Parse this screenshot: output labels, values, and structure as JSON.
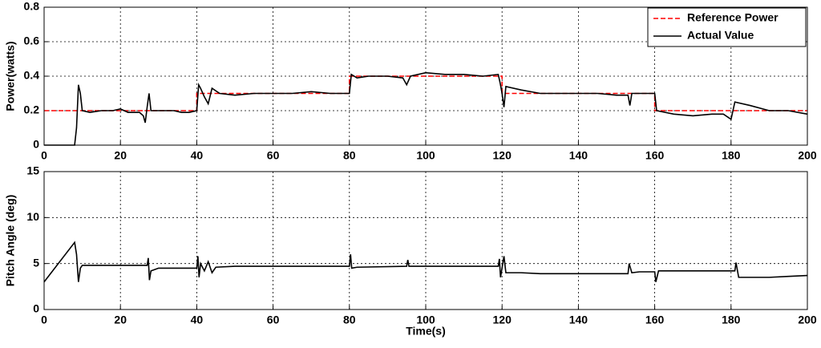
{
  "chart_data": [
    {
      "type": "line",
      "ylabel": "Power(watts)",
      "xlim": [
        0,
        200
      ],
      "ylim": [
        0,
        0.8
      ],
      "xticks": [
        0,
        20,
        40,
        60,
        80,
        100,
        120,
        140,
        160,
        180,
        200
      ],
      "yticks": [
        0,
        0.2,
        0.4,
        0.6,
        0.8
      ],
      "grid": true,
      "legend": "upper right",
      "series": [
        {
          "name": "Reference Power",
          "color": "#ff0000",
          "line_style": "dashed",
          "x": [
            0,
            40,
            40,
            80,
            80,
            120,
            120,
            160,
            160,
            200
          ],
          "values": [
            0.2,
            0.2,
            0.3,
            0.3,
            0.4,
            0.4,
            0.3,
            0.3,
            0.2,
            0.2
          ]
        },
        {
          "name": "Actual Value",
          "color": "#000000",
          "line_style": "solid",
          "x": [
            0,
            8,
            8.5,
            9,
            9.5,
            10,
            12,
            15,
            18,
            20,
            22,
            25,
            26,
            26.5,
            27,
            27.5,
            28,
            30,
            34,
            36,
            38,
            40,
            40.5,
            41,
            42,
            43,
            44,
            46,
            50,
            55,
            60,
            65,
            70,
            75,
            80,
            80.5,
            82,
            85,
            90,
            94,
            95,
            96,
            100,
            105,
            110,
            115,
            119,
            119.5,
            120,
            120.5,
            121,
            125,
            130,
            140,
            145,
            150,
            153,
            153.5,
            154,
            158,
            160,
            160.5,
            165,
            170,
            175,
            178,
            180,
            180.5,
            181,
            185,
            190,
            195,
            200
          ],
          "values": [
            0,
            0,
            0.1,
            0.35,
            0.3,
            0.2,
            0.19,
            0.2,
            0.2,
            0.21,
            0.19,
            0.19,
            0.17,
            0.13,
            0.22,
            0.3,
            0.2,
            0.2,
            0.2,
            0.19,
            0.19,
            0.2,
            0.35,
            0.33,
            0.28,
            0.24,
            0.33,
            0.3,
            0.29,
            0.3,
            0.3,
            0.3,
            0.31,
            0.3,
            0.3,
            0.41,
            0.39,
            0.4,
            0.4,
            0.39,
            0.35,
            0.4,
            0.42,
            0.41,
            0.41,
            0.4,
            0.41,
            0.36,
            0.3,
            0.22,
            0.34,
            0.32,
            0.3,
            0.3,
            0.3,
            0.29,
            0.29,
            0.23,
            0.3,
            0.3,
            0.3,
            0.2,
            0.18,
            0.17,
            0.18,
            0.18,
            0.15,
            0.2,
            0.25,
            0.23,
            0.2,
            0.2,
            0.18
          ]
        }
      ]
    },
    {
      "type": "line",
      "ylabel": "Pitch Angle (deg)",
      "xlabel": "Time(s)",
      "xlim": [
        0,
        200
      ],
      "ylim": [
        0,
        15
      ],
      "xticks": [
        0,
        20,
        40,
        60,
        80,
        100,
        120,
        140,
        160,
        180,
        200
      ],
      "yticks": [
        0,
        5,
        10,
        15
      ],
      "grid": true,
      "series": [
        {
          "color": "#000000",
          "line_style": "solid",
          "x": [
            0,
            8,
            8.5,
            9,
            9.5,
            10,
            20,
            27,
            27.3,
            27.6,
            28,
            30,
            40,
            40.3,
            40.6,
            41,
            42,
            43,
            44,
            45,
            50,
            60,
            70,
            80,
            80.3,
            80.6,
            82,
            95,
            95.3,
            95.6,
            100,
            110,
            119,
            119.3,
            119.6,
            120.5,
            121,
            125,
            130,
            140,
            150,
            153,
            153.3,
            154,
            156,
            158,
            160,
            160.3,
            161,
            170,
            181,
            181.3,
            182,
            190,
            195,
            200
          ],
          "values": [
            3,
            7.3,
            6,
            3,
            4.5,
            4.8,
            4.8,
            4.8,
            5.6,
            3.2,
            4.2,
            4.5,
            4.5,
            5.8,
            3.5,
            5,
            4.2,
            5.2,
            4,
            4.6,
            4.7,
            4.7,
            4.7,
            4.7,
            6,
            4.5,
            4.6,
            4.7,
            5.4,
            4.7,
            4.7,
            4.7,
            4.7,
            5.5,
            3.5,
            5.8,
            4,
            4,
            3.9,
            3.9,
            3.9,
            3.9,
            5,
            4,
            4.1,
            4.1,
            4.1,
            3,
            4.2,
            4.2,
            4.2,
            5.1,
            3.5,
            3.5,
            3.6,
            3.7
          ]
        }
      ]
    }
  ]
}
